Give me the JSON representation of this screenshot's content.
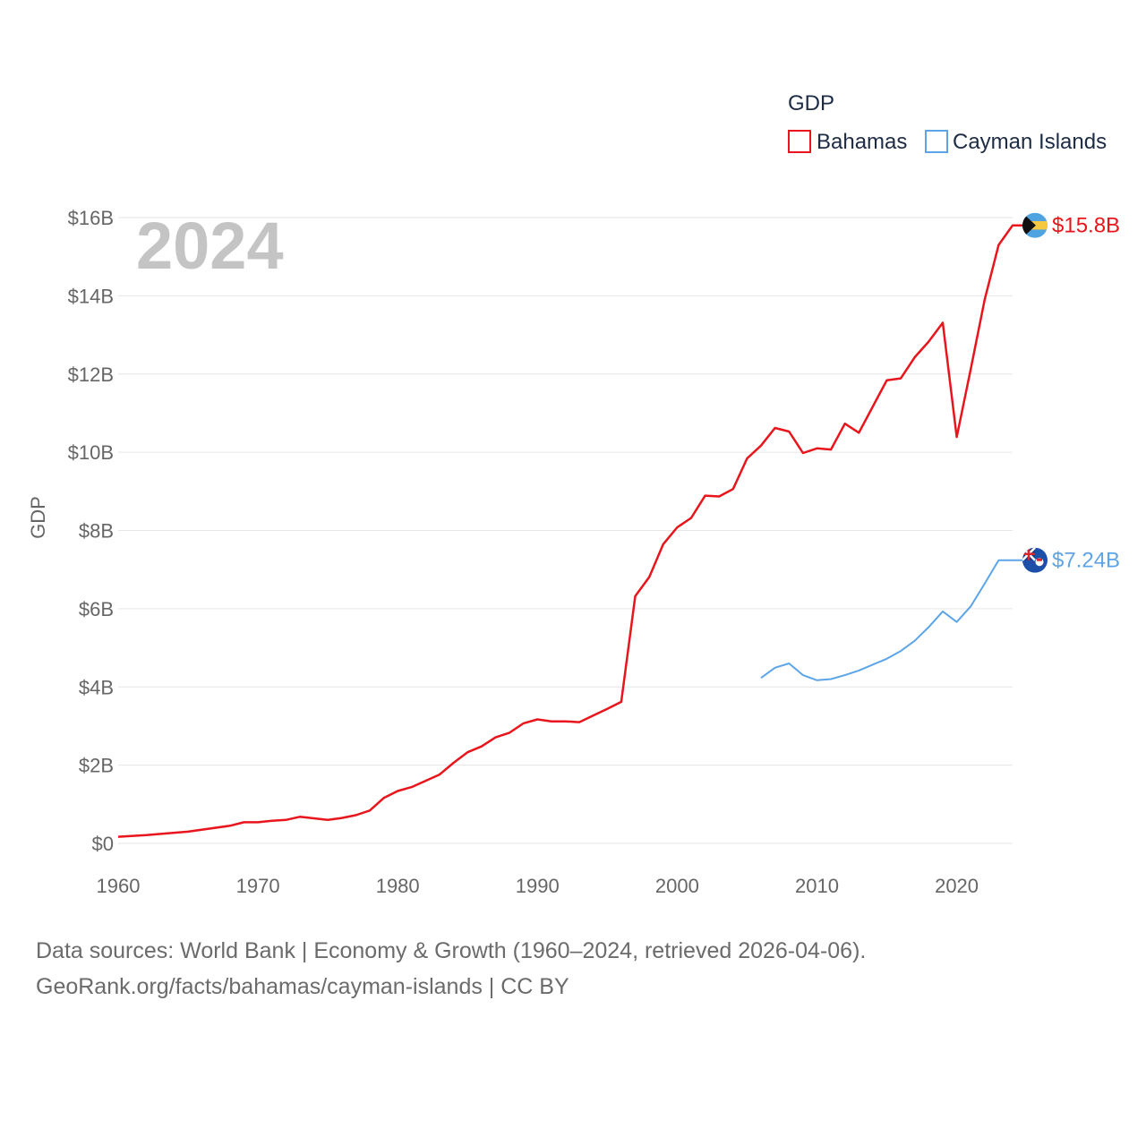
{
  "chart_data": {
    "type": "line",
    "legend_title": "GDP",
    "legend_position": "top-right",
    "year_label": "2024",
    "ylabel": "GDP",
    "xlim": [
      1960,
      2024
    ],
    "ylim": [
      0,
      16
    ],
    "x_ticks": [
      1960,
      1970,
      1980,
      1990,
      2000,
      2010,
      2020
    ],
    "y_ticks": [
      {
        "value": 0,
        "label": "$0"
      },
      {
        "value": 2,
        "label": "$2B"
      },
      {
        "value": 4,
        "label": "$4B"
      },
      {
        "value": 6,
        "label": "$6B"
      },
      {
        "value": 8,
        "label": "$8B"
      },
      {
        "value": 10,
        "label": "$10B"
      },
      {
        "value": 12,
        "label": "$12B"
      },
      {
        "value": 14,
        "label": "$14B"
      },
      {
        "value": 16,
        "label": "$16B"
      }
    ],
    "series": [
      {
        "name": "Bahamas",
        "color": "#e8161c",
        "end_label": "$15.8B",
        "flag": "bahamas-flag",
        "x": [
          1960,
          1962,
          1965,
          1968,
          1969,
          1970,
          1971,
          1972,
          1973,
          1974,
          1975,
          1976,
          1977,
          1978,
          1979,
          1980,
          1981,
          1982,
          1983,
          1984,
          1985,
          1986,
          1987,
          1988,
          1989,
          1990,
          1991,
          1992,
          1993,
          1994,
          1995,
          1996,
          1997,
          1998,
          1999,
          2000,
          2001,
          2002,
          2003,
          2004,
          2005,
          2006,
          2007,
          2008,
          2009,
          2010,
          2011,
          2012,
          2013,
          2014,
          2015,
          2016,
          2017,
          2018,
          2019,
          2020,
          2021,
          2022,
          2023,
          2024
        ],
        "values": [
          0.17,
          0.21,
          0.3,
          0.45,
          0.54,
          0.54,
          0.58,
          0.6,
          0.68,
          0.64,
          0.6,
          0.65,
          0.72,
          0.84,
          1.16,
          1.34,
          1.44,
          1.6,
          1.76,
          2.06,
          2.33,
          2.48,
          2.71,
          2.83,
          3.07,
          3.17,
          3.12,
          3.12,
          3.1,
          3.27,
          3.44,
          3.62,
          6.32,
          6.81,
          7.65,
          8.08,
          8.32,
          8.89,
          8.87,
          9.06,
          9.84,
          10.17,
          10.62,
          10.53,
          9.98,
          10.1,
          10.07,
          10.73,
          10.5,
          11.17,
          11.84,
          11.89,
          12.43,
          12.83,
          13.31,
          10.39,
          12.12,
          13.9,
          15.3,
          15.8
        ]
      },
      {
        "name": "Cayman Islands",
        "color": "#5da5e8",
        "end_label": "$7.24B",
        "flag": "cayman-islands-flag",
        "x": [
          2006,
          2007,
          2008,
          2009,
          2010,
          2011,
          2012,
          2013,
          2014,
          2015,
          2016,
          2017,
          2018,
          2019,
          2020,
          2021,
          2022,
          2023,
          2024
        ],
        "values": [
          4.23,
          4.49,
          4.6,
          4.3,
          4.17,
          4.2,
          4.3,
          4.42,
          4.57,
          4.72,
          4.92,
          5.18,
          5.53,
          5.93,
          5.66,
          6.06,
          6.64,
          7.24,
          7.24
        ]
      }
    ]
  },
  "footer": {
    "line1": "Data sources: World Bank | Economy & Growth (1960–2024, retrieved 2026-04-06).",
    "line2": "GeoRank.org/facts/bahamas/cayman-islands | CC BY"
  }
}
